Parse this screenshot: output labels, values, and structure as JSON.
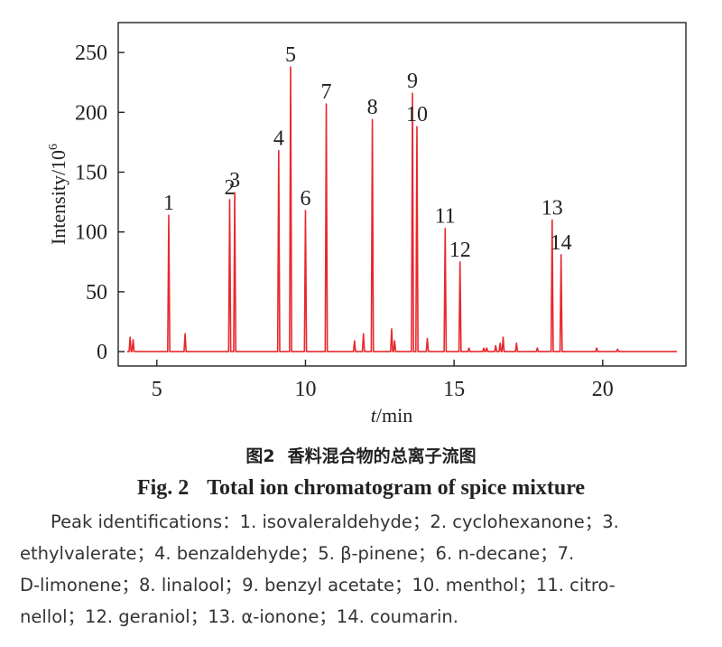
{
  "chart_data": {
    "type": "line",
    "xlabel_italic": "t",
    "xlabel_unit": "/min",
    "ylabel": "Intensity/10",
    "ylabel_exp": "6",
    "xlim": [
      3.7,
      22.8
    ],
    "ylim": [
      -12,
      275
    ],
    "xticks": [
      5,
      10,
      15,
      20
    ],
    "yticks": [
      0,
      50,
      100,
      150,
      200,
      250
    ],
    "grid": false,
    "line_color": "#e8282f",
    "series": [
      {
        "peaks": [
          {
            "x": 4.1,
            "y": 12
          },
          {
            "x": 4.2,
            "y": 10
          },
          {
            "x": 5.4,
            "y": 114
          },
          {
            "x": 5.95,
            "y": 15
          },
          {
            "x": 7.45,
            "y": 127
          },
          {
            "x": 7.62,
            "y": 133
          },
          {
            "x": 9.1,
            "y": 168
          },
          {
            "x": 9.5,
            "y": 238
          },
          {
            "x": 10.0,
            "y": 118
          },
          {
            "x": 10.7,
            "y": 207
          },
          {
            "x": 11.65,
            "y": 9
          },
          {
            "x": 11.95,
            "y": 15
          },
          {
            "x": 12.25,
            "y": 194
          },
          {
            "x": 12.9,
            "y": 19
          },
          {
            "x": 13.0,
            "y": 9
          },
          {
            "x": 13.6,
            "y": 216
          },
          {
            "x": 13.75,
            "y": 188
          },
          {
            "x": 14.1,
            "y": 11
          },
          {
            "x": 14.7,
            "y": 103
          },
          {
            "x": 15.2,
            "y": 75
          },
          {
            "x": 15.5,
            "y": 3
          },
          {
            "x": 16.0,
            "y": 3
          },
          {
            "x": 16.1,
            "y": 3
          },
          {
            "x": 16.4,
            "y": 5
          },
          {
            "x": 16.55,
            "y": 7
          },
          {
            "x": 16.65,
            "y": 12
          },
          {
            "x": 17.1,
            "y": 7
          },
          {
            "x": 17.8,
            "y": 3
          },
          {
            "x": 18.3,
            "y": 110
          },
          {
            "x": 18.6,
            "y": 81
          },
          {
            "x": 19.8,
            "y": 3
          },
          {
            "x": 20.5,
            "y": 2
          }
        ]
      }
    ],
    "annotations": [
      {
        "text": "1",
        "x": 5.4,
        "y": 114
      },
      {
        "text": "2",
        "x": 7.45,
        "y": 127
      },
      {
        "text": "3",
        "x": 7.62,
        "y": 133
      },
      {
        "text": "4",
        "x": 9.1,
        "y": 168
      },
      {
        "text": "5",
        "x": 9.5,
        "y": 238
      },
      {
        "text": "6",
        "x": 10.0,
        "y": 118
      },
      {
        "text": "7",
        "x": 10.7,
        "y": 207
      },
      {
        "text": "8",
        "x": 12.25,
        "y": 194
      },
      {
        "text": "9",
        "x": 13.6,
        "y": 216
      },
      {
        "text": "10",
        "x": 13.75,
        "y": 188
      },
      {
        "text": "11",
        "x": 14.7,
        "y": 103
      },
      {
        "text": "12",
        "x": 15.2,
        "y": 75
      },
      {
        "text": "13",
        "x": 18.3,
        "y": 110
      },
      {
        "text": "14",
        "x": 18.6,
        "y": 81
      }
    ]
  },
  "caption": {
    "cn_fig": "图2",
    "cn_title": "香料混合物的总离子流图",
    "en_fig": "Fig. 2",
    "en_title": "Total ion chromatogram of spice mixture"
  },
  "note": {
    "line1": "Peak identifications：1. isovaleraldehyde；2. cyclohexanone；3.",
    "line2": "ethylvalerate；4. benzaldehyde；5. β-pinene；6. n-decane；7.",
    "line3": "D-limonene；8. linalool；9. benzyl acetate；10. menthol；11. citro-",
    "line4": "nellol；12. geraniol；13. α-ionone；14. coumarin."
  }
}
